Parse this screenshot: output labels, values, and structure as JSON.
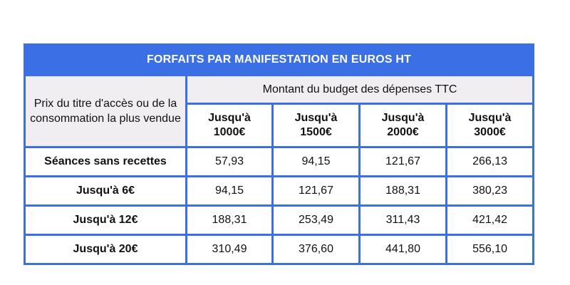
{
  "table": {
    "title": "FORFAITS PAR MANIFESTATION EN EUROS HT",
    "row_header": "Prix du titre d'accès ou de la consommation la plus vendue",
    "budget_header": "Montant du budget des dépenses TTC",
    "columns": [
      {
        "line1": "Jusqu'à",
        "line2": "1000€"
      },
      {
        "line1": "Jusqu'à",
        "line2": "1500€"
      },
      {
        "line1": "Jusqu'à",
        "line2": "2000€"
      },
      {
        "line1": "Jusqu'à",
        "line2": "3000€"
      }
    ],
    "rows": [
      {
        "label": "Séances sans recettes",
        "values": [
          "57,93",
          "94,15",
          "121,67",
          "266,13"
        ]
      },
      {
        "label": "Jusqu'à 6€",
        "values": [
          "94,15",
          "121,67",
          "188,31",
          "380,23"
        ]
      },
      {
        "label": "Jusqu'à 12€",
        "values": [
          "188,31",
          "253,49",
          "311,43",
          "421,42"
        ]
      },
      {
        "label": "Jusqu'à 20€",
        "values": [
          "310,49",
          "376,60",
          "441,80",
          "556,10"
        ]
      }
    ]
  },
  "colors": {
    "border": "#3a6fe6",
    "title_background": "#3a6fe6",
    "header_background": "#f1eef2"
  }
}
